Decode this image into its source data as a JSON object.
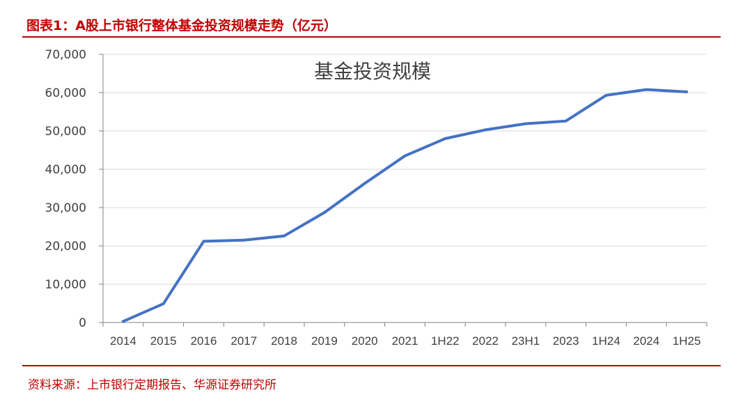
{
  "header": {
    "title": "图表1：A股上市银行整体基金投资规模走势（亿元）"
  },
  "footer": {
    "source": "资料来源：上市银行定期报告、华源证券研究所"
  },
  "colors": {
    "accent": "#c00000",
    "line": "#4472c4",
    "grid": "#d9d9d9"
  },
  "chart_data": {
    "type": "line",
    "title": "基金投资规模",
    "categories": [
      "2014",
      "2015",
      "2016",
      "2017",
      "2018",
      "2019",
      "2020",
      "2021",
      "1H22",
      "2022",
      "23H1",
      "2023",
      "1H24",
      "2024",
      "1H25"
    ],
    "series": [
      {
        "values": [
          300,
          4900,
          21200,
          21500,
          22600,
          28700,
          36300,
          43500,
          48000,
          50300,
          51900,
          52600,
          59300,
          60800,
          60200
        ]
      }
    ],
    "ylim": [
      0,
      70000
    ],
    "yticks": [
      0,
      10000,
      20000,
      30000,
      40000,
      50000,
      60000,
      70000
    ],
    "ytick_labels": [
      "0",
      "10,000",
      "20,000",
      "30,000",
      "40,000",
      "50,000",
      "60,000",
      "70,000"
    ],
    "xlabel": "",
    "ylabel": "",
    "grid": true,
    "legend": "none"
  }
}
